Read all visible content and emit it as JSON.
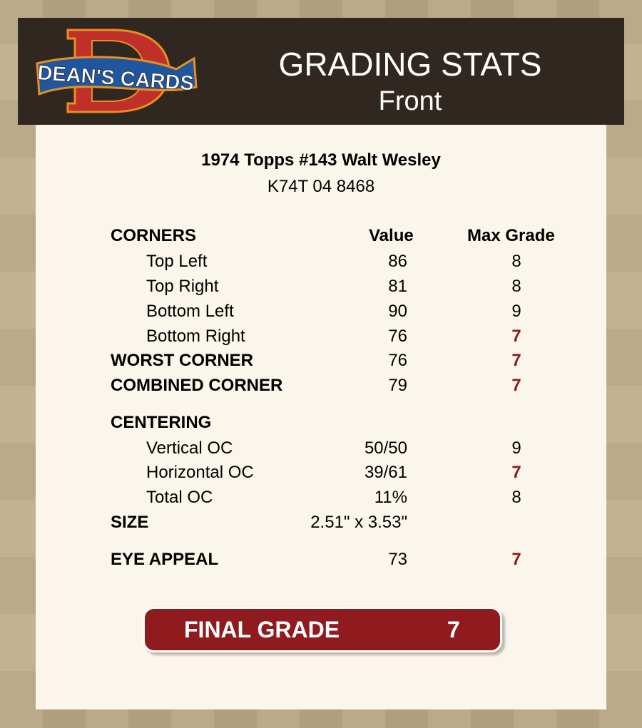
{
  "header": {
    "logo_text": "DEAN'S CARDS",
    "title": "GRADING STATS",
    "subtitle": "Front"
  },
  "card": {
    "name": "1974 Topps #143 Walt Wesley",
    "cert": "K74T 04 8468"
  },
  "columns": {
    "value": "Value",
    "max_grade": "Max Grade"
  },
  "colors": {
    "accent_red": "#8f1b1e",
    "header_bg": "#302820",
    "panel_bg": "#fbf6ec"
  },
  "rows": [
    {
      "label": "CORNERS",
      "value": "",
      "max": "",
      "bold": true
    },
    {
      "label": "Top Left",
      "value": "86",
      "max": "8"
    },
    {
      "label": "Top Right",
      "value": "81",
      "max": "8"
    },
    {
      "label": "Bottom Left",
      "value": "90",
      "max": "9"
    },
    {
      "label": "Bottom Right",
      "value": "76",
      "max": "7"
    },
    {
      "label": "WORST CORNER",
      "value": "76",
      "max": "7"
    },
    {
      "label": "COMBINED CORNER",
      "value": "79",
      "max": "7"
    },
    {
      "label": "CENTERING",
      "value": "",
      "max": ""
    },
    {
      "label": "Vertical OC",
      "value": "50/50",
      "max": "9"
    },
    {
      "label": "Horizontal OC",
      "value": "39/61",
      "max": "7"
    },
    {
      "label": "Total OC",
      "value": "11%",
      "max": "8"
    },
    {
      "label": "SIZE",
      "value": "2.51\" x 3.53\"",
      "max": ""
    },
    {
      "label": "EYE APPEAL",
      "value": "73",
      "max": "7"
    }
  ],
  "final": {
    "label": "FINAL GRADE",
    "value": "7"
  }
}
